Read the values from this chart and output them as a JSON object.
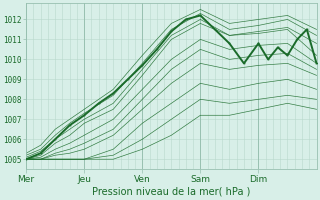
{
  "title": "",
  "xlabel": "Pression niveau de la mer( hPa )",
  "ylabel": "",
  "bg_color": "#d8efe8",
  "grid_color": "#b8d8cc",
  "line_color": "#1a6b2a",
  "xlim": [
    0,
    120
  ],
  "ylim": [
    1004.5,
    1012.8
  ],
  "yticks": [
    1005,
    1006,
    1007,
    1008,
    1009,
    1010,
    1011,
    1012
  ],
  "day_positions": [
    0,
    24,
    48,
    72,
    96,
    120
  ],
  "day_labels": [
    "Mer",
    "Jeu",
    "Ven",
    "Sam",
    "Dim"
  ],
  "lines": [
    [
      0,
      1005.0,
      6,
      1005.2,
      12,
      1005.8,
      18,
      1006.2,
      24,
      1006.8,
      36,
      1007.5,
      48,
      1009.2,
      60,
      1011.0,
      72,
      1011.8,
      84,
      1011.2,
      96,
      1011.3,
      108,
      1011.5,
      120,
      1010.2
    ],
    [
      0,
      1005.2,
      6,
      1005.5,
      12,
      1006.2,
      18,
      1006.8,
      24,
      1007.3,
      36,
      1008.2,
      48,
      1009.8,
      60,
      1011.5,
      72,
      1012.3,
      84,
      1011.5,
      96,
      1011.7,
      108,
      1012.0,
      120,
      1011.2
    ],
    [
      0,
      1005.0,
      6,
      1005.1,
      12,
      1005.5,
      18,
      1005.8,
      24,
      1006.2,
      36,
      1007.0,
      48,
      1008.5,
      60,
      1010.0,
      72,
      1011.0,
      84,
      1010.5,
      96,
      1010.7,
      108,
      1010.8,
      120,
      1009.8
    ],
    [
      0,
      1005.0,
      6,
      1005.0,
      12,
      1005.3,
      18,
      1005.5,
      24,
      1005.8,
      36,
      1006.5,
      48,
      1008.0,
      60,
      1009.5,
      72,
      1010.5,
      84,
      1010.0,
      96,
      1010.2,
      108,
      1010.3,
      120,
      1009.5
    ],
    [
      0,
      1005.1,
      6,
      1005.4,
      12,
      1006.0,
      18,
      1006.5,
      24,
      1007.0,
      36,
      1007.8,
      48,
      1009.5,
      60,
      1011.2,
      72,
      1012.0,
      84,
      1011.2,
      96,
      1011.4,
      108,
      1011.6,
      120,
      1010.8
    ],
    [
      0,
      1005.0,
      6,
      1005.0,
      12,
      1005.2,
      18,
      1005.3,
      24,
      1005.5,
      36,
      1006.2,
      48,
      1007.5,
      60,
      1008.8,
      72,
      1009.8,
      84,
      1009.5,
      96,
      1009.7,
      108,
      1009.8,
      120,
      1009.2
    ],
    [
      0,
      1005.3,
      6,
      1005.7,
      12,
      1006.5,
      18,
      1007.0,
      24,
      1007.5,
      36,
      1008.5,
      48,
      1010.2,
      60,
      1011.8,
      72,
      1012.5,
      84,
      1011.8,
      96,
      1012.0,
      108,
      1012.2,
      120,
      1011.5
    ],
    [
      0,
      1005.0,
      6,
      1005.0,
      12,
      1005.0,
      18,
      1005.0,
      24,
      1005.0,
      36,
      1005.5,
      48,
      1006.8,
      60,
      1007.8,
      72,
      1008.8,
      84,
      1008.5,
      96,
      1008.8,
      108,
      1009.0,
      120,
      1008.5
    ],
    [
      0,
      1005.0,
      6,
      1005.0,
      12,
      1005.0,
      18,
      1005.0,
      24,
      1005.0,
      36,
      1005.2,
      48,
      1006.0,
      60,
      1007.0,
      72,
      1008.0,
      84,
      1007.8,
      96,
      1008.0,
      108,
      1008.2,
      120,
      1008.0
    ],
    [
      0,
      1005.0,
      6,
      1005.0,
      12,
      1005.0,
      18,
      1005.0,
      24,
      1005.0,
      36,
      1005.0,
      48,
      1005.5,
      60,
      1006.2,
      72,
      1007.2,
      84,
      1007.2,
      96,
      1007.5,
      108,
      1007.8,
      120,
      1007.5
    ]
  ],
  "main_line": [
    0,
    1005.0,
    6,
    1005.3,
    12,
    1006.0,
    18,
    1006.7,
    24,
    1007.2,
    30,
    1007.8,
    36,
    1008.3,
    42,
    1009.0,
    48,
    1009.7,
    54,
    1010.5,
    60,
    1011.4,
    66,
    1012.0,
    72,
    1012.2,
    78,
    1011.5,
    84,
    1010.8,
    90,
    1009.8,
    96,
    1010.8,
    100,
    1010.0,
    104,
    1010.6,
    108,
    1010.2,
    112,
    1011.0,
    116,
    1011.5,
    120,
    1009.8
  ]
}
